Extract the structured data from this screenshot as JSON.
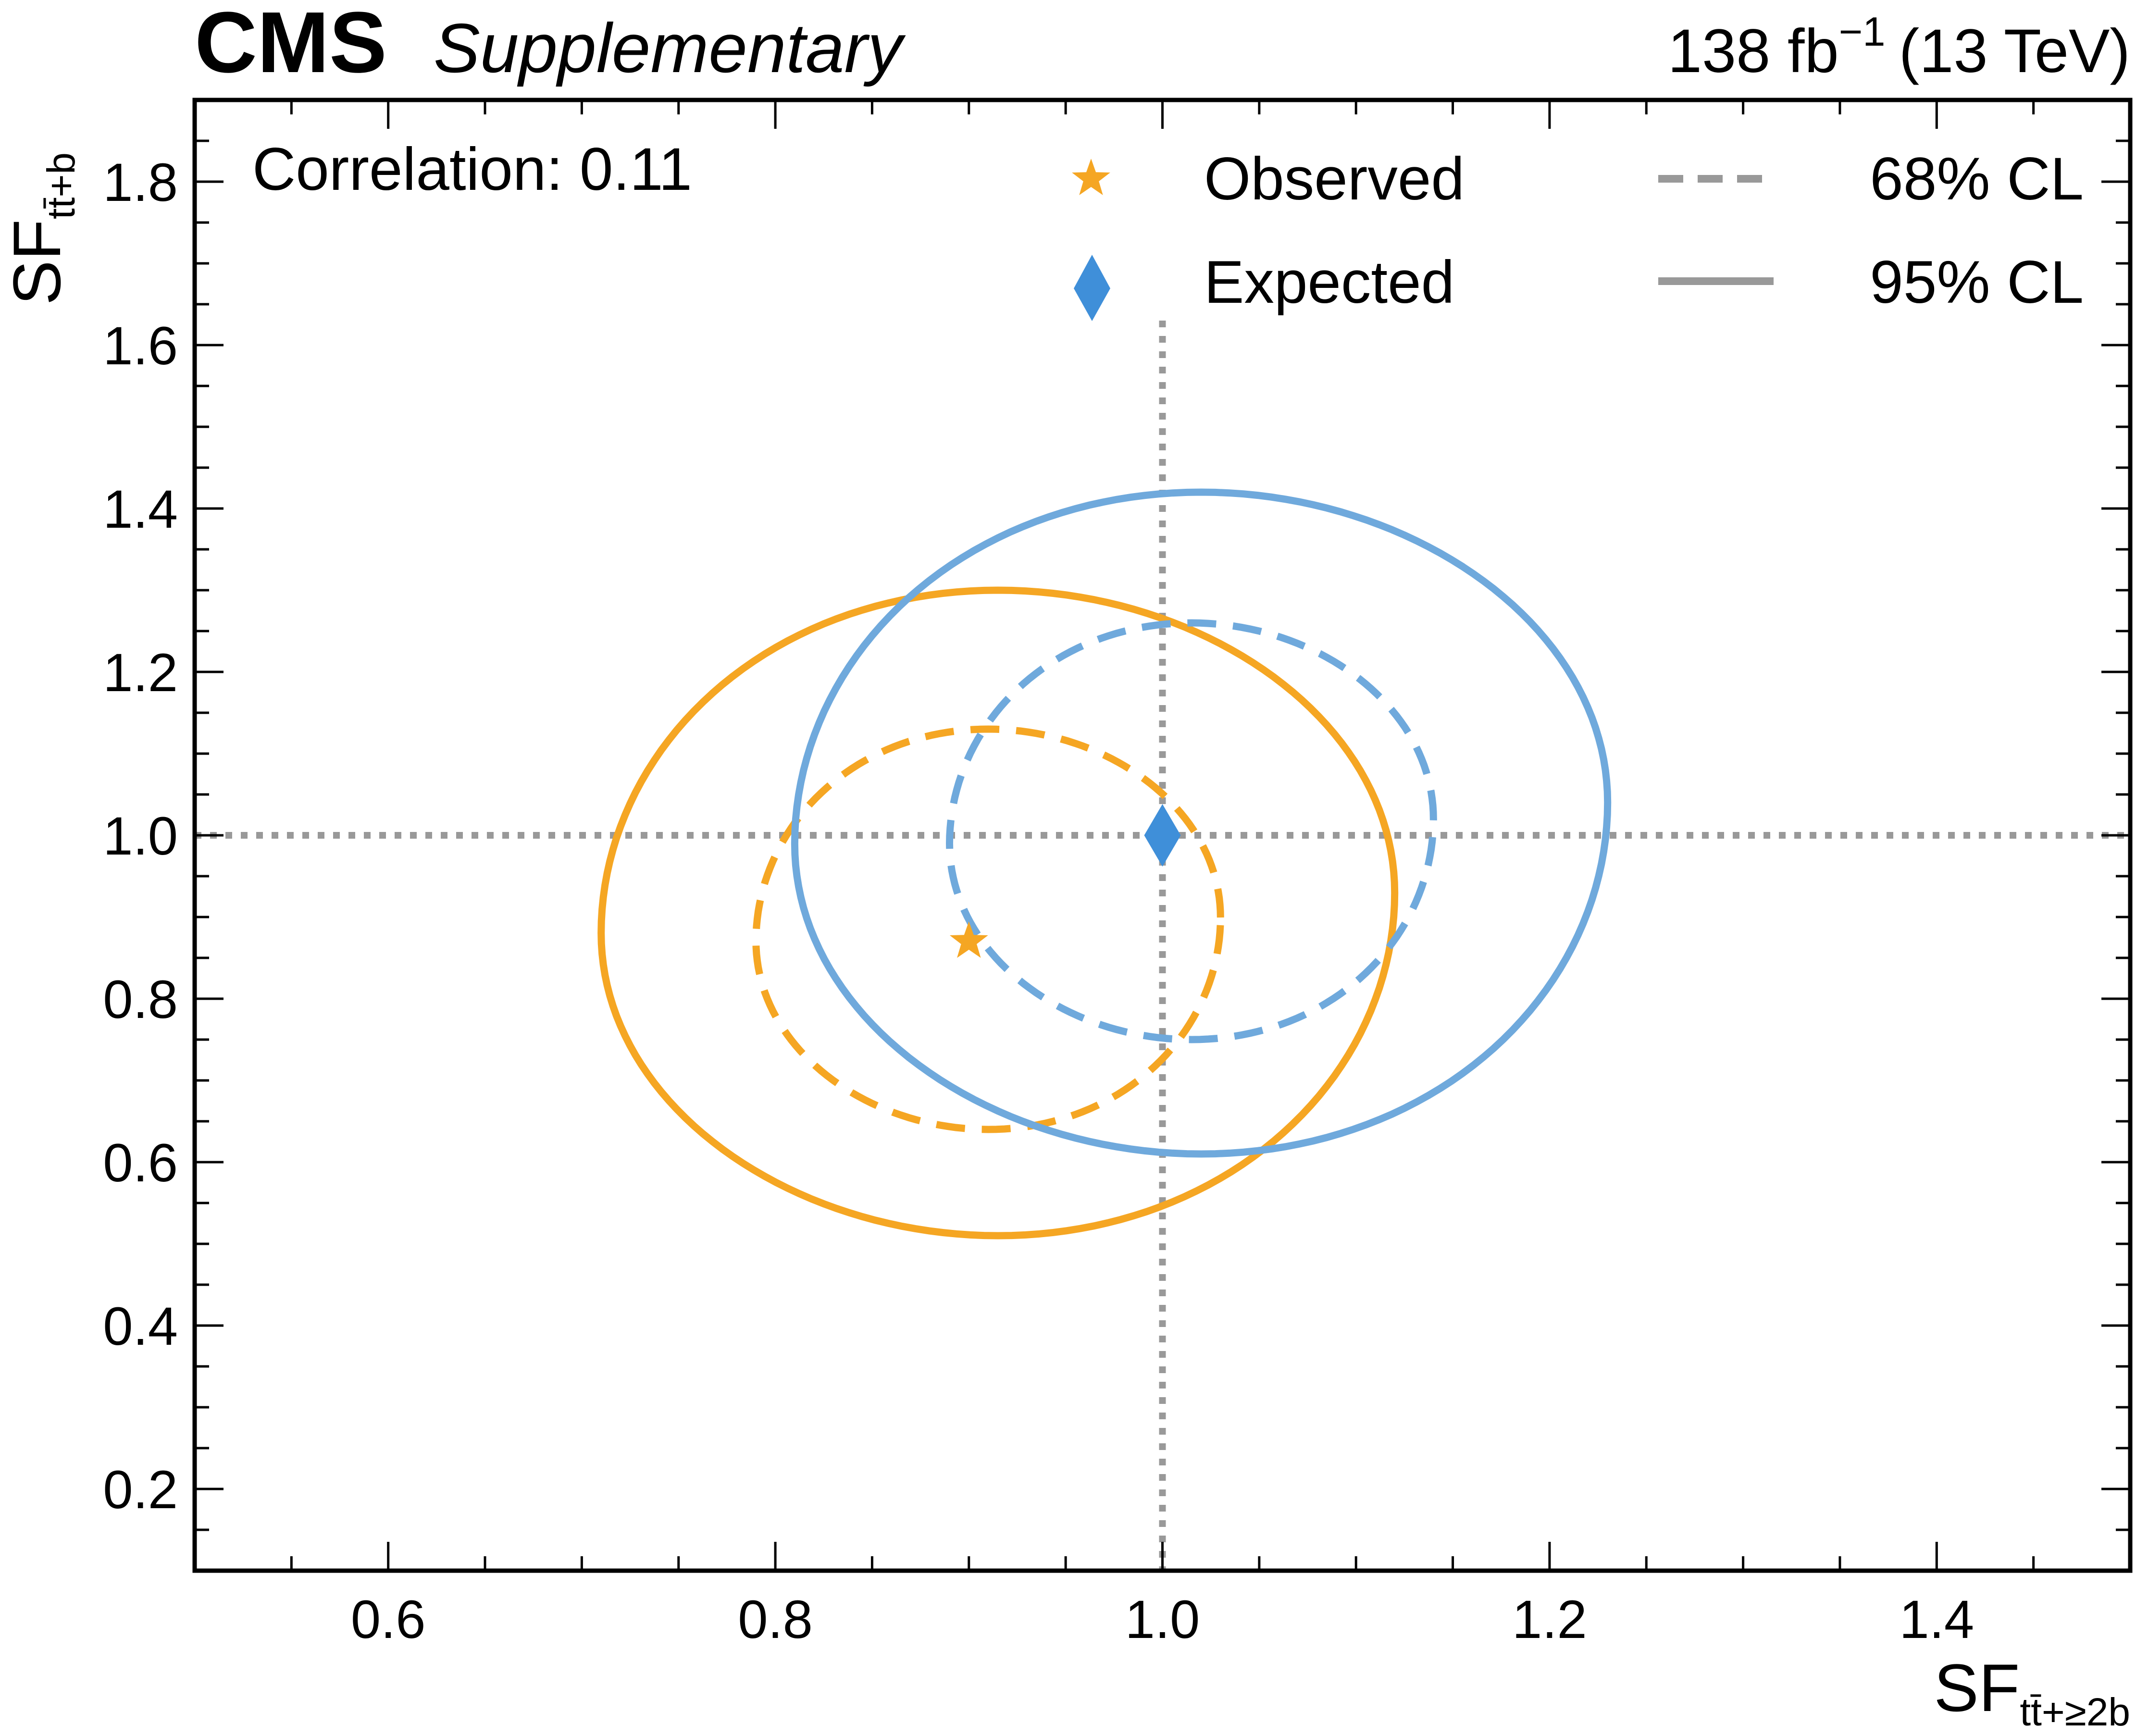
{
  "header": {
    "experiment": "CMS",
    "status": "Supplementary",
    "lumi_value": "138 fb",
    "lumi_exp": "−1",
    "energy": "(13 TeV)"
  },
  "annotation": "Correlation: 0.11",
  "legend": {
    "observed": "Observed",
    "expected": "Expected",
    "cl68": "68% CL",
    "cl95": "95% CL"
  },
  "axes": {
    "x_label_main": "SF",
    "x_label_sub": "tt̄+≥2b",
    "y_label_main": "SF",
    "y_label_sub": "tt̄+b"
  },
  "colors": {
    "observed": "#F5A623",
    "expected": "#6FA9DC",
    "expected_marker": "#3F8FD9",
    "reference": "#999999",
    "legend_line": "#999999"
  },
  "chart_data": {
    "type": "scatter",
    "x_range": [
      0.5,
      1.5
    ],
    "y_range": [
      0.1,
      1.9
    ],
    "x_ticks": [
      "0.6",
      "0.8",
      "1.0",
      "1.2",
      "1.4"
    ],
    "y_ticks": [
      "0.2",
      "0.4",
      "0.6",
      "0.8",
      "1.0",
      "1.2",
      "1.4",
      "1.6",
      "1.8"
    ],
    "correlation": 0.11,
    "reference_lines": {
      "x": 1.0,
      "y": 1.0
    },
    "points": [
      {
        "name": "Observed",
        "x": 0.9,
        "y": 0.87,
        "marker": "star"
      },
      {
        "name": "Expected",
        "x": 1.0,
        "y": 1.0,
        "marker": "diamond"
      }
    ],
    "contours": [
      {
        "name": "Observed 68% CL",
        "style": "dashed",
        "center": [
          0.912,
          0.884
        ],
        "x_range": [
          0.79,
          1.03
        ],
        "y_range": [
          0.64,
          1.13
        ]
      },
      {
        "name": "Observed 95% CL",
        "style": "solid",
        "center": [
          0.92,
          0.904
        ],
        "x_range": [
          0.71,
          1.12
        ],
        "y_range": [
          0.51,
          1.3
        ]
      },
      {
        "name": "Expected 68% CL",
        "style": "dashed",
        "center": [
          1.016,
          1.005
        ],
        "x_range": [
          0.89,
          1.14
        ],
        "y_range": [
          0.75,
          1.26
        ]
      },
      {
        "name": "Expected 95% CL",
        "style": "solid",
        "center": [
          1.027,
          1.018
        ],
        "x_range": [
          0.81,
          1.23
        ],
        "y_range": [
          0.61,
          1.42
        ]
      }
    ],
    "grid": false,
    "legend_position": "top"
  }
}
